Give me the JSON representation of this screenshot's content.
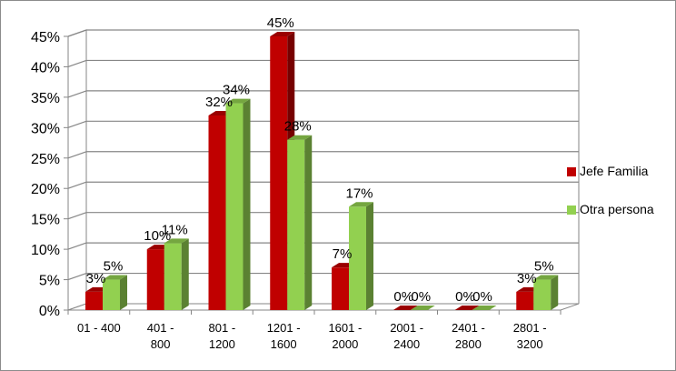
{
  "chart_data": {
    "type": "bar",
    "categories": [
      "01 - 400",
      "401 - 800",
      "801 - 1200",
      "1201 - 1600",
      "1601 - 2000",
      "2001 - 2400",
      "2401 - 2800",
      "2801 - 3200"
    ],
    "series": [
      {
        "name": "Jefe Familia",
        "values": [
          3,
          10,
          32,
          45,
          7,
          0,
          0,
          3
        ],
        "labels": [
          "3%",
          "10%",
          "32%",
          "45%",
          "7%",
          "0%",
          "0%",
          "3%"
        ],
        "color": "#c00000"
      },
      {
        "name": "Otra persona",
        "values": [
          5,
          11,
          34,
          28,
          17,
          0,
          0,
          5
        ],
        "labels": [
          "5%",
          "11%",
          "34%",
          "28%",
          "17%",
          "0%",
          "0%",
          "5%"
        ],
        "color": "#92d050"
      }
    ],
    "y_ticks": [
      "0%",
      "5%",
      "10%",
      "15%",
      "20%",
      "25%",
      "30%",
      "35%",
      "40%",
      "45%"
    ],
    "ylim": [
      0,
      45
    ],
    "grid": true,
    "legend_position": "right",
    "three_d": true
  }
}
